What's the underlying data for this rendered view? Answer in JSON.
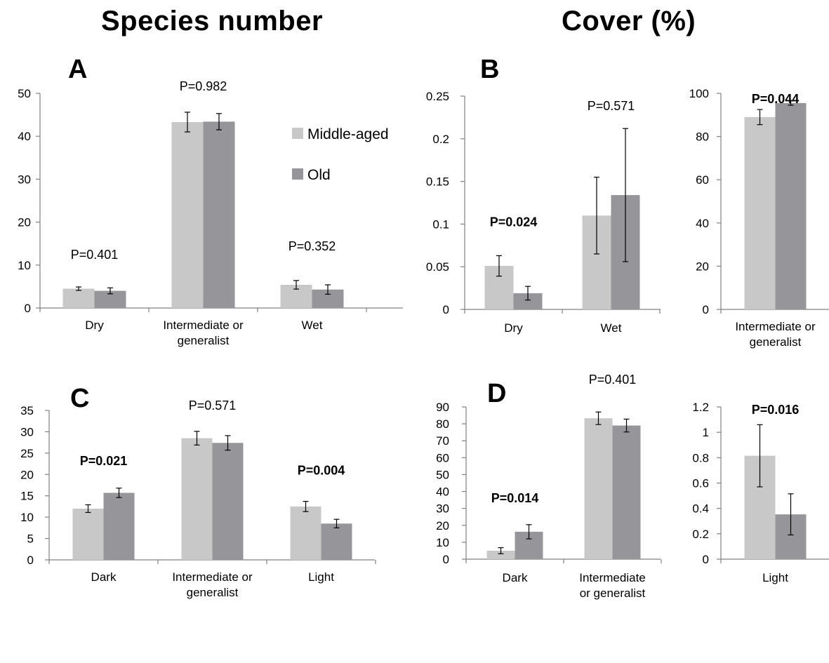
{
  "headings": {
    "species": "Species number",
    "cover": "Cover (%)"
  },
  "legend": {
    "middle_aged": "Middle-aged",
    "old": "Old"
  },
  "colors": {
    "middle_aged": "#c8c8c8",
    "old": "#96969a",
    "axis": "#808080"
  },
  "chart_data": [
    {
      "panel": "A",
      "type": "bar",
      "categories": [
        "Dry",
        "Intermediate or\ngeneralist",
        "Wet"
      ],
      "series": [
        {
          "name": "Middle-aged",
          "values": [
            4.5,
            43.3,
            5.4
          ],
          "errors": [
            0.4,
            2.3,
            1.0
          ]
        },
        {
          "name": "Old",
          "values": [
            4.0,
            43.4,
            4.3
          ],
          "errors": [
            0.7,
            1.9,
            1.1
          ]
        }
      ],
      "annotations": [
        {
          "text": "P=0.401",
          "bold": false
        },
        {
          "text": "P=0.982",
          "bold": false
        },
        {
          "text": "P=0.352",
          "bold": false
        }
      ],
      "ylim": [
        0,
        50
      ],
      "yticks": [
        0,
        10,
        20,
        30,
        40,
        50
      ],
      "yticklabels": [
        "0",
        "10",
        "20",
        "30",
        "40",
        "50"
      ]
    },
    {
      "panel": "B",
      "type": "bar",
      "categories": [
        "Dry",
        "Wet"
      ],
      "series": [
        {
          "name": "Middle-aged",
          "values": [
            0.051,
            0.11
          ],
          "errors": [
            0.012,
            0.045
          ]
        },
        {
          "name": "Old",
          "values": [
            0.019,
            0.134
          ],
          "errors": [
            0.008,
            0.078
          ]
        }
      ],
      "annotations": [
        {
          "text": "P=0.024",
          "bold": true
        },
        {
          "text": "P=0.571",
          "bold": false
        }
      ],
      "ylim": [
        0,
        0.25
      ],
      "yticks": [
        0,
        0.05,
        0.1,
        0.15,
        0.2,
        0.25
      ],
      "yticklabels": [
        "0",
        "0.05",
        "0.1",
        "0.15",
        "0.2",
        "0.25"
      ]
    },
    {
      "panel": "",
      "type": "bar",
      "categories": [
        "Intermediate or\ngeneralist"
      ],
      "series": [
        {
          "name": "Middle-aged",
          "values": [
            89.0
          ],
          "errors": [
            3.5
          ]
        },
        {
          "name": "Old",
          "values": [
            95.5
          ],
          "errors": [
            1.0
          ]
        }
      ],
      "annotations": [
        {
          "text": "P=0.044",
          "bold": true
        }
      ],
      "ylim": [
        0,
        100
      ],
      "yticks": [
        0,
        20,
        40,
        60,
        80,
        100
      ],
      "yticklabels": [
        "0",
        "20",
        "40",
        "60",
        "80",
        "100"
      ]
    },
    {
      "panel": "C",
      "type": "bar",
      "categories": [
        "Dark",
        "Intermediate or\ngeneralist",
        "Light"
      ],
      "series": [
        {
          "name": "Middle-aged",
          "values": [
            12.0,
            28.5,
            12.5
          ],
          "errors": [
            0.9,
            1.6,
            1.2
          ]
        },
        {
          "name": "Old",
          "values": [
            15.7,
            27.4,
            8.5
          ],
          "errors": [
            1.1,
            1.7,
            1.0
          ]
        }
      ],
      "annotations": [
        {
          "text": "P=0.021",
          "bold": true
        },
        {
          "text": "P=0.571",
          "bold": false
        },
        {
          "text": "P=0.004",
          "bold": true
        }
      ],
      "ylim": [
        0,
        35
      ],
      "yticks": [
        0,
        5,
        10,
        15,
        20,
        25,
        30,
        35
      ],
      "yticklabels": [
        "0",
        "5",
        "10",
        "15",
        "20",
        "25",
        "30",
        "35"
      ]
    },
    {
      "panel": "D",
      "type": "bar",
      "categories": [
        "Dark",
        "Intermediate\nor generalist"
      ],
      "series": [
        {
          "name": "Middle-aged",
          "values": [
            5.0,
            83.3
          ],
          "errors": [
            1.8,
            3.7
          ]
        },
        {
          "name": "Old",
          "values": [
            16.2,
            79.0
          ],
          "errors": [
            4.2,
            3.8
          ]
        }
      ],
      "annotations": [
        {
          "text": "P=0.014",
          "bold": true
        },
        {
          "text": "P=0.401",
          "bold": false
        }
      ],
      "ylim": [
        0,
        90
      ],
      "yticks": [
        0,
        10,
        20,
        30,
        40,
        50,
        60,
        70,
        80,
        90
      ],
      "yticklabels": [
        "0",
        "10",
        "20",
        "30",
        "40",
        "50",
        "60",
        "70",
        "80",
        "90"
      ]
    },
    {
      "panel": "",
      "type": "bar",
      "categories": [
        "Light"
      ],
      "series": [
        {
          "name": "Middle-aged",
          "values": [
            0.815
          ],
          "errors": [
            0.245
          ]
        },
        {
          "name": "Old",
          "values": [
            0.353
          ],
          "errors": [
            0.162
          ]
        }
      ],
      "annotations": [
        {
          "text": "P=0.016",
          "bold": true
        }
      ],
      "ylim": [
        0,
        1.2
      ],
      "yticks": [
        0,
        0.2,
        0.4,
        0.6,
        0.8,
        1.0,
        1.2
      ],
      "yticklabels": [
        "0",
        "0.2",
        "0.4",
        "0.6",
        "0.8",
        "1",
        "1.2"
      ]
    }
  ]
}
